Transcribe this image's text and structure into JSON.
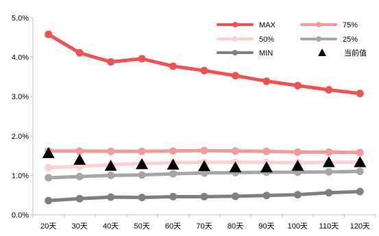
{
  "chart_data": {
    "type": "line",
    "title": "",
    "xlabel": "",
    "ylabel": "",
    "categories": [
      "20天",
      "30天",
      "40天",
      "50天",
      "60天",
      "70天",
      "80天",
      "90天",
      "100天",
      "110天",
      "120天"
    ],
    "ylim": [
      0,
      5
    ],
    "y_ticks": [
      "0.0%",
      "1.0%",
      "2.0%",
      "3.0%",
      "4.0%",
      "5.0%"
    ],
    "grid": false,
    "legend_position": "top-right",
    "series": [
      {
        "name": "MAX",
        "type": "line",
        "color": "#f05050",
        "values": [
          4.58,
          4.11,
          3.88,
          3.96,
          3.77,
          3.66,
          3.53,
          3.39,
          3.28,
          3.17,
          3.08
        ]
      },
      {
        "name": "75%",
        "type": "line",
        "color": "#f59a9a",
        "values": [
          1.62,
          1.62,
          1.61,
          1.61,
          1.62,
          1.63,
          1.62,
          1.61,
          1.59,
          1.59,
          1.58
        ]
      },
      {
        "name": "50%",
        "type": "line",
        "color": "#fbd0d0",
        "values": [
          1.2,
          1.23,
          1.27,
          1.3,
          1.32,
          1.33,
          1.33,
          1.33,
          1.32,
          1.33,
          1.33
        ]
      },
      {
        "name": "25%",
        "type": "line",
        "color": "#a6a6a6",
        "values": [
          0.94,
          0.97,
          1.0,
          1.01,
          1.04,
          1.06,
          1.07,
          1.08,
          1.08,
          1.09,
          1.1
        ]
      },
      {
        "name": "MIN",
        "type": "line",
        "color": "#7f7f7f",
        "values": [
          0.36,
          0.41,
          0.45,
          0.44,
          0.46,
          0.46,
          0.47,
          0.49,
          0.51,
          0.56,
          0.59
        ]
      },
      {
        "name": "当前值",
        "type": "scatter",
        "marker": "triangle",
        "color": "#000000",
        "values": [
          1.56,
          1.39,
          1.24,
          1.28,
          1.27,
          1.23,
          1.2,
          1.2,
          1.24,
          1.33,
          1.33
        ]
      }
    ]
  }
}
